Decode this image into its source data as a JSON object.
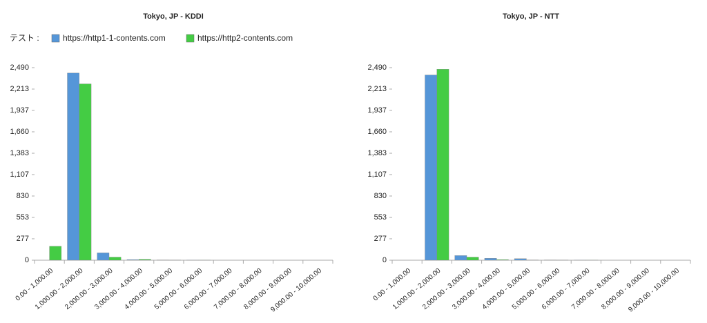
{
  "legend_label": "テスト :",
  "chart_data": [
    {
      "type": "bar",
      "title": "Tokyo, JP - KDDI",
      "categories": [
        "0.00 - 1,000.00",
        "1,000.00 - 2,000.00",
        "2,000.00 - 3,000.00",
        "3,000.00 - 4,000.00",
        "4,000.00 - 5,000.00",
        "5,000.00 - 6,000.00",
        "6,000.00 - 7,000.00",
        "7,000.00 - 8,000.00",
        "8,000.00 - 9,000.00",
        "9,000.00 - 10,000.00"
      ],
      "series": [
        {
          "name": "https://http1-1-contents.com",
          "color": "#5596d8",
          "values": [
            0,
            2420,
            95,
            8,
            3,
            1,
            0,
            0,
            0,
            0
          ]
        },
        {
          "name": "https://http2-contents.com",
          "color": "#44cc44",
          "values": [
            180,
            2280,
            40,
            12,
            2,
            1,
            0,
            0,
            0,
            0
          ]
        }
      ],
      "ylim": [
        0,
        2490
      ],
      "yticks": [
        0,
        277,
        553,
        830,
        {
          "value": 1107,
          "label": "1,107"
        },
        {
          "value": 1383,
          "label": "1,383"
        },
        {
          "value": 1660,
          "label": "1,660"
        },
        {
          "value": 1937,
          "label": "1,937"
        },
        {
          "value": 2213,
          "label": "2,213"
        },
        {
          "value": 2490,
          "label": "2,490"
        }
      ]
    },
    {
      "type": "bar",
      "title": "Tokyo, JP - NTT",
      "categories": [
        "0.00 - 1,000.00",
        "1,000.00 - 2,000.00",
        "2,000.00 - 3,000.00",
        "3,000.00 - 4,000.00",
        "4,000.00 - 5,000.00",
        "5,000.00 - 6,000.00",
        "6,000.00 - 7,000.00",
        "7,000.00 - 8,000.00",
        "8,000.00 - 9,000.00",
        "9,000.00 - 10,000.00"
      ],
      "series": [
        {
          "name": "https://http1-1-contents.com",
          "color": "#5596d8",
          "values": [
            0,
            2395,
            60,
            25,
            20,
            3,
            1,
            0,
            0,
            0
          ]
        },
        {
          "name": "https://http2-contents.com",
          "color": "#44cc44",
          "values": [
            0,
            2470,
            40,
            8,
            3,
            2,
            1,
            0,
            0,
            0
          ]
        }
      ],
      "ylim": [
        0,
        2490
      ],
      "yticks": [
        0,
        277,
        553,
        830,
        {
          "value": 1107,
          "label": "1,107"
        },
        {
          "value": 1383,
          "label": "1,383"
        },
        {
          "value": 1660,
          "label": "1,660"
        },
        {
          "value": 1937,
          "label": "1,937"
        },
        {
          "value": 2213,
          "label": "2,213"
        },
        {
          "value": 2490,
          "label": "2,490"
        }
      ]
    }
  ]
}
